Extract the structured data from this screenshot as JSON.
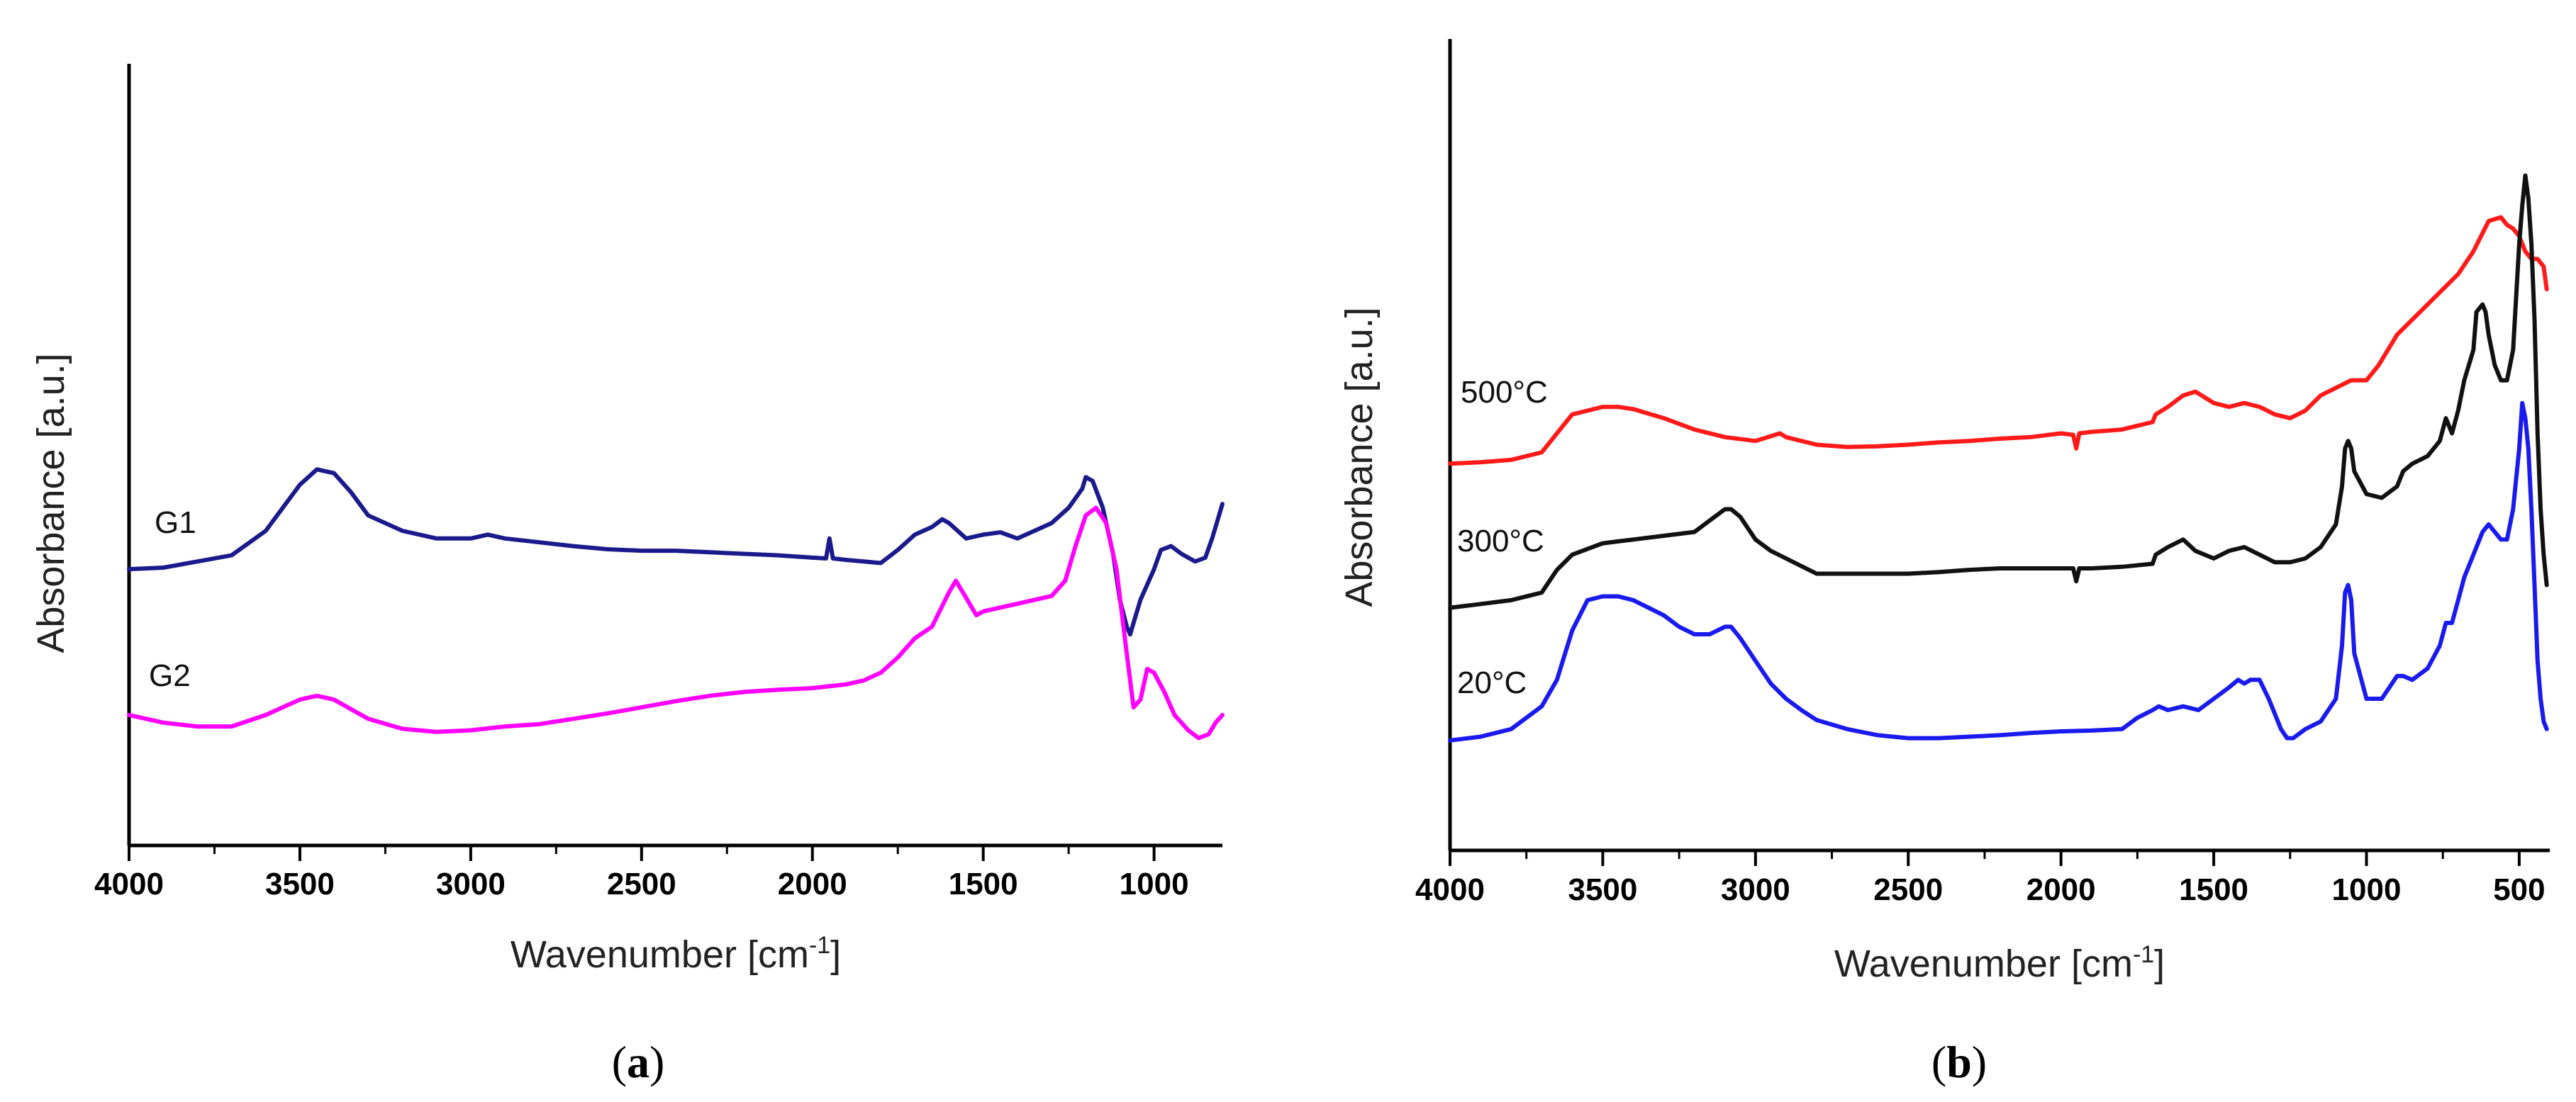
{
  "chart_data": [
    {
      "type": "line",
      "panel": "a",
      "panel_label": "a",
      "xlabel": "Wavenumber [cm",
      "xlabel_sup": "-1",
      "xlabel_end": "]",
      "ylabel": "Absorbance [a.u.]",
      "xlim": [
        4000,
        800
      ],
      "ylim": [
        0,
        1
      ],
      "x_ticks": [
        4000,
        3500,
        3000,
        2500,
        2000,
        1500,
        1000
      ],
      "x_tick_labels": [
        "4000",
        "3500",
        "3000",
        "2500",
        "2000",
        "1500",
        "1000"
      ],
      "series": [
        {
          "name": "G1",
          "label": "G1",
          "color": "#1a1a8c",
          "x": [
            4000,
            3900,
            3800,
            3700,
            3600,
            3550,
            3500,
            3450,
            3400,
            3350,
            3300,
            3200,
            3100,
            3000,
            2950,
            2900,
            2800,
            2700,
            2600,
            2500,
            2400,
            2300,
            2200,
            2100,
            2000,
            1960,
            1950,
            1940,
            1900,
            1850,
            1800,
            1750,
            1700,
            1650,
            1620,
            1600,
            1550,
            1500,
            1450,
            1400,
            1350,
            1300,
            1250,
            1210,
            1200,
            1180,
            1150,
            1120,
            1100,
            1080,
            1070,
            1060,
            1040,
            1020,
            1000,
            980,
            950,
            920,
            900,
            880,
            850,
            830,
            810,
            800
          ],
          "y": [
            0.36,
            0.362,
            0.37,
            0.378,
            0.41,
            0.44,
            0.47,
            0.49,
            0.485,
            0.46,
            0.43,
            0.41,
            0.4,
            0.4,
            0.405,
            0.4,
            0.395,
            0.39,
            0.386,
            0.384,
            0.384,
            0.382,
            0.38,
            0.378,
            0.375,
            0.374,
            0.4,
            0.374,
            0.372,
            0.37,
            0.368,
            0.385,
            0.405,
            0.415,
            0.425,
            0.42,
            0.4,
            0.405,
            0.408,
            0.4,
            0.41,
            0.42,
            0.44,
            0.465,
            0.48,
            0.475,
            0.44,
            0.38,
            0.32,
            0.285,
            0.275,
            0.29,
            0.32,
            0.34,
            0.36,
            0.385,
            0.39,
            0.38,
            0.375,
            0.37,
            0.375,
            0.4,
            0.43,
            0.445
          ]
        },
        {
          "name": "G2",
          "label": "G2",
          "color": "#ff00ff",
          "x": [
            4000,
            3900,
            3800,
            3700,
            3600,
            3500,
            3450,
            3400,
            3300,
            3200,
            3100,
            3000,
            2900,
            2800,
            2700,
            2600,
            2500,
            2400,
            2300,
            2200,
            2100,
            2000,
            1900,
            1850,
            1800,
            1750,
            1700,
            1650,
            1600,
            1580,
            1560,
            1520,
            1500,
            1450,
            1400,
            1350,
            1300,
            1260,
            1230,
            1200,
            1170,
            1140,
            1110,
            1080,
            1060,
            1040,
            1020,
            1000,
            970,
            940,
            900,
            870,
            840,
            820,
            800
          ],
          "y": [
            0.17,
            0.16,
            0.155,
            0.155,
            0.17,
            0.19,
            0.195,
            0.19,
            0.165,
            0.152,
            0.148,
            0.15,
            0.155,
            0.158,
            0.165,
            0.172,
            0.18,
            0.188,
            0.195,
            0.2,
            0.203,
            0.205,
            0.21,
            0.215,
            0.225,
            0.245,
            0.27,
            0.285,
            0.33,
            0.345,
            0.33,
            0.3,
            0.305,
            0.31,
            0.315,
            0.32,
            0.325,
            0.345,
            0.39,
            0.43,
            0.44,
            0.42,
            0.36,
            0.25,
            0.18,
            0.19,
            0.23,
            0.225,
            0.2,
            0.17,
            0.15,
            0.14,
            0.145,
            0.16,
            0.17
          ]
        }
      ]
    },
    {
      "type": "line",
      "panel": "b",
      "panel_label": "b",
      "xlabel": "Wavenumber [cm",
      "xlabel_sup": "-1",
      "xlabel_end": "]",
      "ylabel": "Absorbance [a.u.]",
      "xlim": [
        4000,
        400
      ],
      "ylim": [
        0,
        1
      ],
      "x_ticks": [
        4000,
        3500,
        3000,
        2500,
        2000,
        1500,
        1000,
        500
      ],
      "x_tick_labels": [
        "4000",
        "3500",
        "3000",
        "2500",
        "2000",
        "1500",
        "1000",
        "500"
      ],
      "series": [
        {
          "name": "500°C",
          "label": "500°C",
          "color": "#ff1a1a",
          "x": [
            4000,
            3900,
            3800,
            3700,
            3650,
            3600,
            3500,
            3450,
            3400,
            3300,
            3200,
            3100,
            3000,
            2920,
            2900,
            2850,
            2800,
            2700,
            2600,
            2500,
            2400,
            2300,
            2200,
            2100,
            2000,
            1960,
            1950,
            1940,
            1900,
            1800,
            1700,
            1690,
            1650,
            1600,
            1560,
            1500,
            1450,
            1400,
            1350,
            1300,
            1250,
            1200,
            1150,
            1100,
            1050,
            1000,
            960,
            900,
            850,
            800,
            750,
            700,
            650,
            600,
            560,
            540,
            520,
            500,
            480,
            460,
            440,
            420,
            410
          ],
          "y": [
            0.51,
            0.512,
            0.515,
            0.525,
            0.55,
            0.575,
            0.585,
            0.585,
            0.582,
            0.57,
            0.555,
            0.545,
            0.54,
            0.55,
            0.545,
            0.54,
            0.535,
            0.532,
            0.533,
            0.535,
            0.538,
            0.54,
            0.543,
            0.545,
            0.55,
            0.548,
            0.53,
            0.55,
            0.552,
            0.555,
            0.565,
            0.575,
            0.585,
            0.6,
            0.605,
            0.59,
            0.585,
            0.59,
            0.585,
            0.575,
            0.57,
            0.58,
            0.6,
            0.61,
            0.62,
            0.62,
            0.64,
            0.68,
            0.7,
            0.72,
            0.74,
            0.76,
            0.79,
            0.83,
            0.835,
            0.825,
            0.82,
            0.81,
            0.79,
            0.78,
            0.78,
            0.77,
            0.74
          ]
        },
        {
          "name": "300°C",
          "label": "300°C",
          "color": "#111111",
          "x": [
            4000,
            3900,
            3800,
            3700,
            3650,
            3600,
            3500,
            3400,
            3300,
            3200,
            3150,
            3100,
            3080,
            3050,
            3000,
            2950,
            2900,
            2850,
            2800,
            2700,
            2600,
            2500,
            2400,
            2300,
            2200,
            2100,
            2000,
            1960,
            1950,
            1940,
            1900,
            1800,
            1700,
            1690,
            1650,
            1600,
            1560,
            1500,
            1450,
            1400,
            1350,
            1300,
            1250,
            1200,
            1150,
            1100,
            1080,
            1070,
            1060,
            1050,
            1040,
            1000,
            950,
            900,
            880,
            850,
            800,
            760,
            740,
            720,
            700,
            680,
            650,
            640,
            620,
            610,
            600,
            580,
            560,
            540,
            520,
            500,
            490,
            480,
            470,
            460,
            450,
            440,
            430,
            420,
            410
          ],
          "y": [
            0.32,
            0.325,
            0.33,
            0.34,
            0.37,
            0.39,
            0.405,
            0.41,
            0.415,
            0.42,
            0.435,
            0.45,
            0.45,
            0.44,
            0.41,
            0.395,
            0.385,
            0.375,
            0.365,
            0.365,
            0.365,
            0.365,
            0.367,
            0.37,
            0.372,
            0.372,
            0.372,
            0.372,
            0.355,
            0.372,
            0.372,
            0.374,
            0.378,
            0.39,
            0.4,
            0.41,
            0.395,
            0.385,
            0.395,
            0.4,
            0.39,
            0.38,
            0.38,
            0.385,
            0.4,
            0.43,
            0.48,
            0.53,
            0.54,
            0.53,
            0.5,
            0.47,
            0.465,
            0.48,
            0.5,
            0.51,
            0.52,
            0.54,
            0.57,
            0.55,
            0.58,
            0.62,
            0.66,
            0.71,
            0.72,
            0.71,
            0.68,
            0.64,
            0.62,
            0.62,
            0.66,
            0.8,
            0.85,
            0.89,
            0.86,
            0.8,
            0.7,
            0.55,
            0.45,
            0.39,
            0.35
          ]
        },
        {
          "name": "20°C",
          "label": "20°C",
          "color": "#1a1aee",
          "x": [
            4000,
            3900,
            3800,
            3750,
            3700,
            3650,
            3600,
            3550,
            3500,
            3450,
            3400,
            3350,
            3300,
            3250,
            3200,
            3150,
            3100,
            3080,
            3050,
            3000,
            2950,
            2900,
            2850,
            2800,
            2700,
            2600,
            2500,
            2400,
            2300,
            2200,
            2100,
            2000,
            1900,
            1800,
            1750,
            1700,
            1680,
            1650,
            1600,
            1550,
            1500,
            1450,
            1420,
            1400,
            1380,
            1350,
            1320,
            1300,
            1280,
            1260,
            1240,
            1200,
            1150,
            1100,
            1080,
            1070,
            1060,
            1050,
            1040,
            1000,
            950,
            900,
            880,
            850,
            800,
            760,
            740,
            720,
            700,
            680,
            650,
            620,
            600,
            580,
            560,
            540,
            520,
            500,
            490,
            480,
            470,
            460,
            450,
            440,
            430,
            420,
            410
          ],
          "y": [
            0.145,
            0.15,
            0.16,
            0.175,
            0.19,
            0.225,
            0.29,
            0.33,
            0.335,
            0.335,
            0.33,
            0.32,
            0.31,
            0.295,
            0.285,
            0.285,
            0.295,
            0.295,
            0.28,
            0.25,
            0.22,
            0.2,
            0.185,
            0.172,
            0.16,
            0.152,
            0.148,
            0.148,
            0.15,
            0.152,
            0.155,
            0.157,
            0.158,
            0.16,
            0.175,
            0.185,
            0.19,
            0.185,
            0.19,
            0.185,
            0.2,
            0.215,
            0.225,
            0.22,
            0.225,
            0.225,
            0.2,
            0.18,
            0.16,
            0.148,
            0.148,
            0.16,
            0.17,
            0.2,
            0.27,
            0.34,
            0.35,
            0.33,
            0.26,
            0.2,
            0.2,
            0.23,
            0.23,
            0.225,
            0.24,
            0.27,
            0.3,
            0.3,
            0.33,
            0.36,
            0.39,
            0.42,
            0.43,
            0.42,
            0.41,
            0.41,
            0.45,
            0.53,
            0.59,
            0.57,
            0.53,
            0.45,
            0.35,
            0.25,
            0.2,
            0.17,
            0.16
          ]
        }
      ]
    }
  ]
}
